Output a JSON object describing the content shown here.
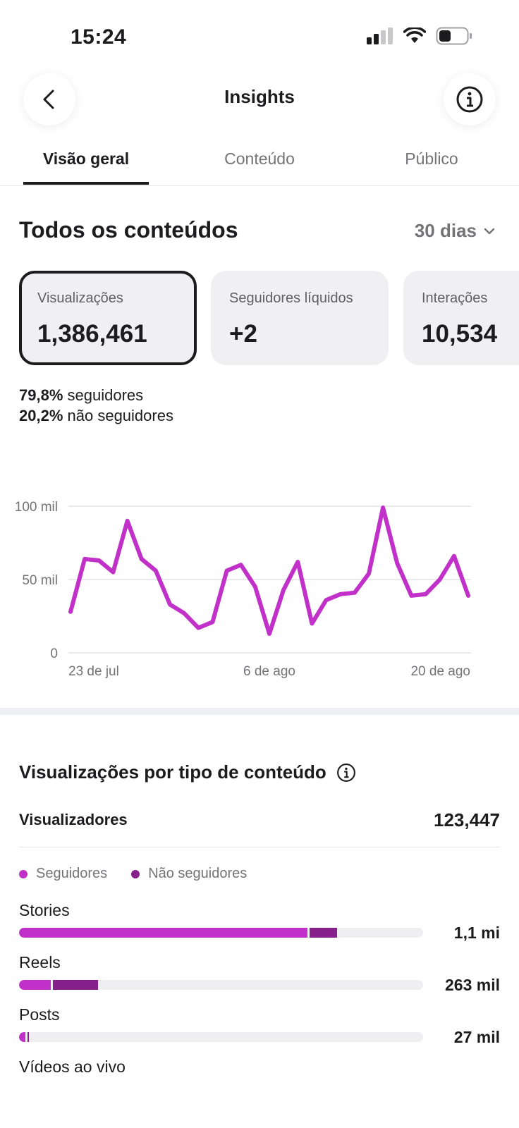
{
  "status": {
    "time": "15:24",
    "icons": [
      "signal-icon",
      "wifi-icon",
      "battery-icon"
    ]
  },
  "nav": {
    "title": "Insights",
    "back_icon": "chevron-left-icon",
    "info_icon": "info-icon"
  },
  "tabs": [
    {
      "label": "Visão geral",
      "active": true
    },
    {
      "label": "Conteúdo",
      "active": false
    },
    {
      "label": "Público",
      "active": false
    }
  ],
  "section": {
    "title": "Todos os conteúdos",
    "period": "30 dias"
  },
  "cards": [
    {
      "label": "Visualizações",
      "value": "1,386,461",
      "selected": true
    },
    {
      "label": "Seguidores líquidos",
      "value": "+2",
      "selected": false
    },
    {
      "label": "Interações",
      "value": "10,534",
      "selected": false
    }
  ],
  "split": {
    "followers_pct": "79,8%",
    "followers_label": "seguidores",
    "nonfollowers_pct": "20,2%",
    "nonfollowers_label": "não seguidores"
  },
  "chart_data": {
    "type": "line",
    "title": "",
    "xlabel": "",
    "ylabel": "",
    "x_tick_labels": [
      "23 de jul",
      "6 de ago",
      "20 de ago"
    ],
    "y_tick_labels": [
      "0",
      "50 mil",
      "100 mil"
    ],
    "ylim": [
      0,
      100000
    ],
    "grid": true,
    "color": "#c130c8",
    "series": [
      {
        "values": [
          28000,
          64000,
          63000,
          55000,
          90000,
          64000,
          56000,
          33000,
          27000,
          17000,
          21000,
          56000,
          60000,
          45000,
          13000,
          43000,
          62000,
          20000,
          36000,
          40000,
          41000,
          54000,
          99000,
          61000,
          39000,
          40000,
          50000,
          66000,
          39000
        ]
      }
    ]
  },
  "content_types": {
    "title": "Visualizações por tipo de conteúdo",
    "info_icon": "info-icon",
    "viewers_label": "Visualizadores",
    "viewers_value": "123,447",
    "legend": [
      {
        "label": "Seguidores",
        "color": "#c130c8"
      },
      {
        "label": "Não seguidores",
        "color": "#86208a"
      }
    ],
    "rows": [
      {
        "label": "Stories",
        "value": "1,1 mi",
        "followers_frac": 0.714,
        "nonfollowers_frac": 0.068
      },
      {
        "label": "Reels",
        "value": "263 mil",
        "followers_frac": 0.079,
        "nonfollowers_frac": 0.112
      },
      {
        "label": "Posts",
        "value": "27 mil",
        "followers_frac": 0.016,
        "nonfollowers_frac": 0.004
      },
      {
        "label": "Vídeos ao vivo",
        "value": "",
        "followers_frac": 0,
        "nonfollowers_frac": 0
      }
    ]
  }
}
